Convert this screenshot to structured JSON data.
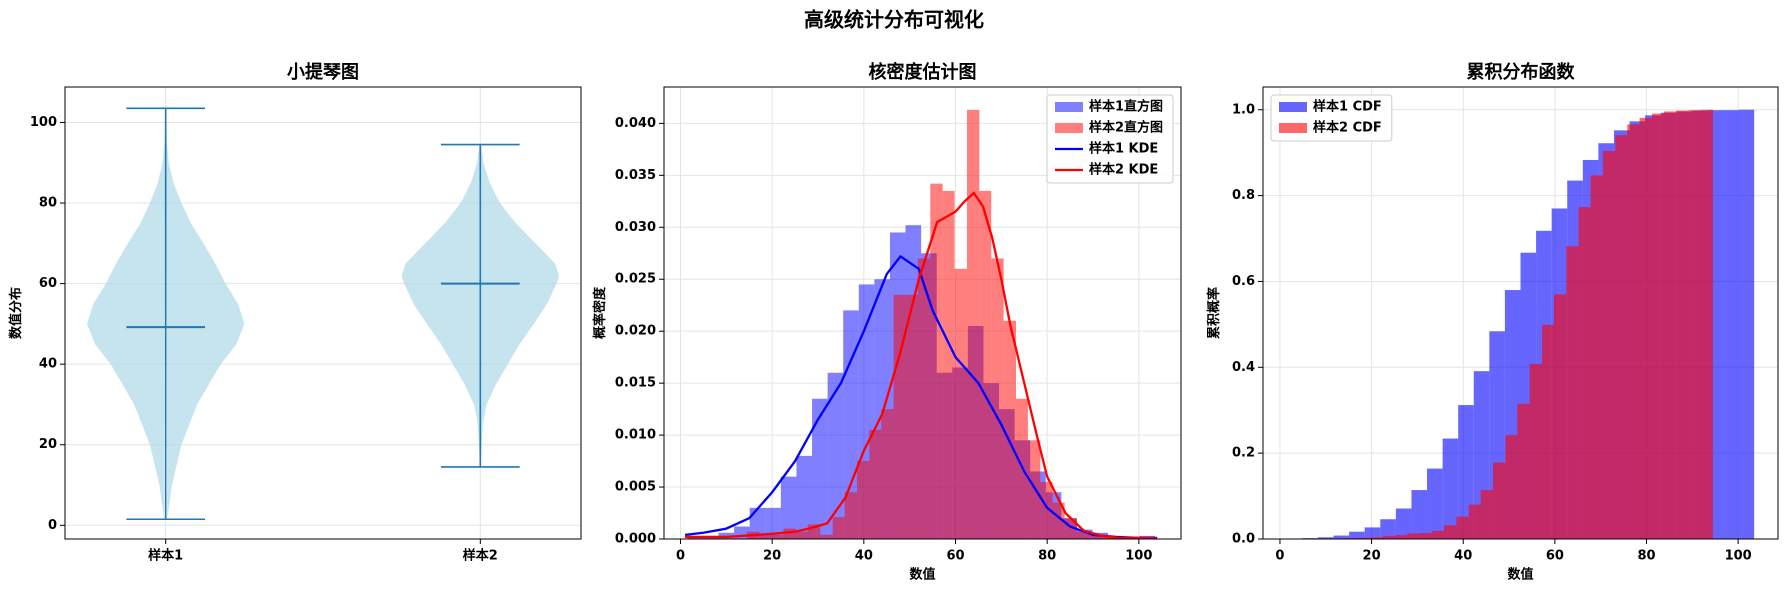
{
  "title": "高级统计分布可视化",
  "chart_data": [
    {
      "type": "violin",
      "title": "小提琴图",
      "ylabel": "数值分布",
      "categories": [
        "样本1",
        "样本2"
      ],
      "ylim": [
        -3.4,
        108.8
      ],
      "yticks": [
        0,
        20,
        40,
        60,
        80,
        100
      ],
      "grid": true,
      "fill_color": "#add8e6",
      "line_color": "#1f77b4",
      "series": [
        {
          "min": 1.5,
          "median": 49.2,
          "max": 103.5,
          "kde_y": [
            1.5,
            10,
            20,
            30,
            40,
            45,
            50,
            55,
            60,
            65,
            70,
            75,
            80,
            85,
            90,
            95,
            103.5
          ],
          "kde_width": [
            0.02,
            0.08,
            0.2,
            0.4,
            0.7,
            0.9,
            1.0,
            0.92,
            0.76,
            0.63,
            0.48,
            0.32,
            0.2,
            0.1,
            0.04,
            0.015,
            0.005
          ]
        },
        {
          "min": 14.5,
          "median": 60,
          "max": 94.5,
          "kde_y": [
            14.5,
            25,
            30,
            35,
            40,
            45,
            50,
            55,
            58,
            60,
            62,
            65,
            70,
            75,
            80,
            85,
            90,
            94.5
          ],
          "kde_width": [
            0.005,
            0.03,
            0.08,
            0.2,
            0.35,
            0.5,
            0.68,
            0.85,
            0.92,
            0.97,
            1.0,
            0.95,
            0.7,
            0.45,
            0.25,
            0.12,
            0.04,
            0.01
          ]
        }
      ]
    },
    {
      "type": "histogram",
      "title": "核密度估计图",
      "xlabel": "数值",
      "ylabel": "概率密度",
      "xlim": [
        -3.6,
        109.2
      ],
      "xticks": [
        0,
        20,
        40,
        60,
        80,
        100
      ],
      "ylim": [
        0,
        0.0435
      ],
      "yticks": [
        {
          "value": 0,
          "label": "0.000"
        },
        0.005,
        {
          "value": 0.01,
          "label": "0.010"
        },
        0.015,
        {
          "value": 0.02,
          "label": "0.020"
        },
        0.025,
        {
          "value": 0.03,
          "label": "0.030"
        },
        0.035,
        {
          "value": 0.04,
          "label": "0.040"
        }
      ],
      "grid": true,
      "legend": "upper right",
      "series": [
        {
          "name": "样本1直方图",
          "type": "histogram",
          "color": "#0000ff",
          "opacity": 0.5,
          "bins": [
            1.5,
            4.9,
            8.3,
            11.7,
            15.1,
            18.5,
            21.9,
            25.3,
            28.7,
            32.1,
            35.5,
            38.9,
            42.3,
            45.7,
            49.1,
            52.5,
            55.9,
            59.3,
            62.7,
            66.1,
            69.5,
            72.9,
            76.3,
            79.7,
            83.1,
            86.5,
            89.9,
            93.3,
            96.7,
            100.1,
            103.5
          ],
          "values": [
            0.0003,
            0.0003,
            0.0006,
            0.0012,
            0.003,
            0.003,
            0.006,
            0.008,
            0.0135,
            0.016,
            0.022,
            0.0245,
            0.025,
            0.0295,
            0.0302,
            0.0275,
            0.016,
            0.0165,
            0.0205,
            0.015,
            0.0125,
            0.0095,
            0.0065,
            0.0045,
            0.002,
            0.0009,
            0.0006,
            0.0003,
            0,
            0.0003
          ]
        },
        {
          "name": "样本2直方图",
          "type": "histogram",
          "color": "#ff0000",
          "opacity": 0.5,
          "bins": [
            14.5,
            17.2,
            19.8,
            22.5,
            25.2,
            27.8,
            30.5,
            33.2,
            35.8,
            38.5,
            41.2,
            43.8,
            46.5,
            49.2,
            51.8,
            54.5,
            57.2,
            59.8,
            62.5,
            65.2,
            67.8,
            70.5,
            73.2,
            75.8,
            78.5,
            81.2,
            83.8,
            86.5,
            89.2,
            91.8,
            94.5
          ],
          "values": [
            0.0007,
            0.0004,
            0.0004,
            0.001,
            0.0007,
            0.0014,
            0.0004,
            0.0021,
            0.0045,
            0.0075,
            0.0105,
            0.0125,
            0.0235,
            0.0235,
            0.027,
            0.0342,
            0.0335,
            0.026,
            0.0413,
            0.0335,
            0.027,
            0.021,
            0.0135,
            0.0095,
            0.0055,
            0.0035,
            0.002,
            0.0007,
            0.0004,
            0.0003
          ]
        },
        {
          "name": "样本1 KDE",
          "type": "line",
          "color": "#0000ff",
          "x": [
            1,
            5,
            10,
            15,
            20,
            25,
            30,
            35,
            40,
            45,
            48,
            52,
            55,
            60,
            65,
            70,
            75,
            80,
            85,
            90,
            95,
            100,
            104
          ],
          "values": [
            0.0004,
            0.0006,
            0.001,
            0.002,
            0.0045,
            0.0075,
            0.0115,
            0.015,
            0.02,
            0.0255,
            0.0272,
            0.026,
            0.022,
            0.0175,
            0.015,
            0.011,
            0.0065,
            0.003,
            0.0012,
            0.0004,
            0.0002,
            0.0001,
            0.0001
          ]
        },
        {
          "name": "样本2 KDE",
          "type": "line",
          "color": "#ff0000",
          "x": [
            1,
            10,
            20,
            25,
            28,
            32,
            36,
            40,
            44,
            48,
            52,
            56,
            58,
            60,
            62,
            64,
            66,
            68,
            70,
            72,
            75,
            78,
            80,
            84,
            88,
            92,
            96,
            100,
            104
          ],
          "values": [
            0.0002,
            0.0002,
            0.0005,
            0.0007,
            0.001,
            0.0015,
            0.004,
            0.0085,
            0.012,
            0.018,
            0.025,
            0.0305,
            0.031,
            0.0315,
            0.0325,
            0.0333,
            0.032,
            0.029,
            0.025,
            0.0205,
            0.015,
            0.0095,
            0.006,
            0.0025,
            0.0008,
            0.0003,
            0.0001,
            0.0001,
            5e-05
          ]
        }
      ]
    },
    {
      "type": "histogram",
      "title": "累积分布函数",
      "xlabel": "数值",
      "ylabel": "累积概率",
      "xlim": [
        -3.7,
        108.7
      ],
      "xticks": [
        0,
        20,
        40,
        60,
        80,
        100
      ],
      "ylim": [
        0,
        1.053
      ],
      "yticks": [
        {
          "value": 0,
          "label": "0.0"
        },
        0.2,
        0.4,
        0.6,
        0.8,
        {
          "value": 1,
          "label": "1.0"
        }
      ],
      "grid": true,
      "legend": "upper left",
      "series": [
        {
          "name": "样本1 CDF",
          "type": "histogram",
          "color": "#0000ff",
          "opacity": 0.6,
          "bins": [
            1.5,
            4.9,
            8.3,
            11.7,
            15.1,
            18.5,
            21.9,
            25.3,
            28.7,
            32.1,
            35.5,
            38.9,
            42.3,
            45.7,
            49.1,
            52.5,
            55.9,
            59.3,
            62.7,
            66.1,
            69.5,
            72.9,
            76.3,
            79.7,
            83.1,
            86.5,
            89.9,
            93.3,
            96.7,
            100.1,
            103.5
          ],
          "values": [
            0.001,
            0.002,
            0.004,
            0.008,
            0.017,
            0.027,
            0.046,
            0.071,
            0.114,
            0.164,
            0.234,
            0.312,
            0.391,
            0.484,
            0.58,
            0.667,
            0.718,
            0.77,
            0.835,
            0.883,
            0.922,
            0.952,
            0.973,
            0.987,
            0.993,
            0.996,
            0.998,
            0.999,
            0.999,
            1.0
          ]
        },
        {
          "name": "样本2 CDF",
          "type": "histogram",
          "color": "#ff0000",
          "opacity": 0.6,
          "bins": [
            14.5,
            17.2,
            19.8,
            22.5,
            25.2,
            27.8,
            30.5,
            33.2,
            35.8,
            38.5,
            41.2,
            43.8,
            46.5,
            49.2,
            51.8,
            54.5,
            57.2,
            59.8,
            62.5,
            65.2,
            67.8,
            70.5,
            73.2,
            75.8,
            78.5,
            81.2,
            83.8,
            86.5,
            89.2,
            91.8,
            94.5
          ],
          "values": [
            0.002,
            0.003,
            0.004,
            0.007,
            0.009,
            0.013,
            0.014,
            0.019,
            0.032,
            0.052,
            0.08,
            0.114,
            0.178,
            0.242,
            0.315,
            0.408,
            0.499,
            0.57,
            0.682,
            0.773,
            0.847,
            0.904,
            0.941,
            0.966,
            0.981,
            0.991,
            0.996,
            0.998,
            0.999,
            1.0
          ]
        }
      ]
    }
  ]
}
